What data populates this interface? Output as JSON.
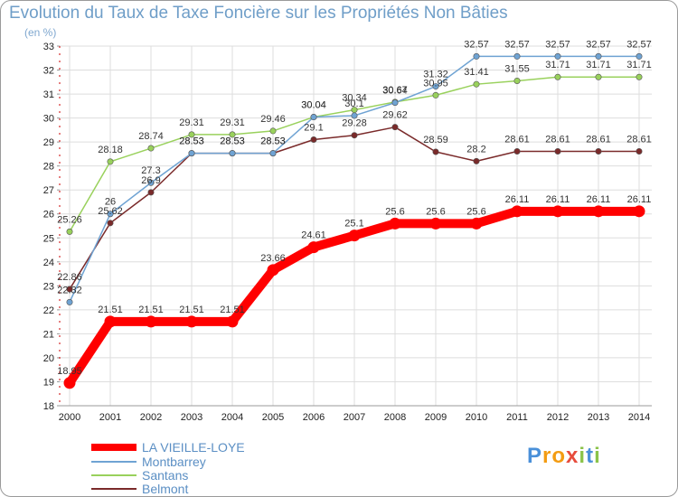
{
  "title": "Evolution du Taux de Taxe Foncière sur les Propriétés Non Bâties",
  "unit_label": "(en %)",
  "logo": {
    "letters": [
      "P",
      "r",
      "o",
      "x",
      "i",
      "t",
      "i"
    ],
    "colors": [
      "#4a90d9",
      "#f39c12",
      "#f39c12",
      "#e74c3c",
      "#8bc34a",
      "#4a90d9",
      "#8bc34a"
    ]
  },
  "chart_data": {
    "type": "line",
    "title": "Evolution du Taux de Taxe Foncière sur les Propriétés Non Bâties",
    "ylabel": "(en %)",
    "xlabel": "",
    "x": [
      "2000",
      "2001",
      "2002",
      "2003",
      "2004",
      "2005",
      "2006",
      "2007",
      "2008",
      "2009",
      "2010",
      "2011",
      "2012",
      "2013",
      "2014"
    ],
    "yticks": [
      18,
      19,
      20,
      21,
      22,
      23,
      24,
      25,
      26,
      27,
      28,
      29,
      30,
      31,
      32,
      33
    ],
    "ylim": [
      18,
      33
    ],
    "series": [
      {
        "name": "LA VIEILLE-LOYE",
        "color": "#ff0000",
        "values": [
          18.95,
          21.51,
          21.51,
          21.51,
          21.51,
          23.66,
          24.61,
          25.1,
          25.6,
          25.6,
          25.6,
          26.11,
          26.11,
          26.11,
          26.11
        ],
        "labels": [
          "18.95",
          "21.51",
          "21.51",
          "21.51",
          "21.51",
          "23.66",
          "24.61",
          "25.1",
          "25.6",
          "25.6",
          "25.6",
          "26.11",
          "26.11",
          "26.11",
          "26.11"
        ]
      },
      {
        "name": "Montbarrey",
        "color": "#6fa3d3",
        "values": [
          22.32,
          26.0,
          27.3,
          28.53,
          28.53,
          28.53,
          30.04,
          30.1,
          30.64,
          31.32,
          32.57,
          32.57,
          32.57,
          32.57,
          32.57
        ],
        "labels": [
          "22.32",
          "26",
          "27.3",
          "28.53",
          "28.53",
          "28.53",
          "30.04",
          "30.1",
          "30.64",
          "31.32",
          "32.57",
          "32.57",
          "32.57",
          "32.57",
          "32.57"
        ]
      },
      {
        "name": "Santans",
        "color": "#99d15c",
        "values": [
          25.26,
          28.18,
          28.74,
          29.31,
          29.31,
          29.46,
          30.04,
          30.34,
          30.67,
          30.95,
          31.41,
          31.55,
          31.71,
          31.71,
          31.71
        ],
        "labels": [
          "25.26",
          "28.18",
          "28.74",
          "29.31",
          "29.31",
          "29.46",
          "30.04",
          "30.34",
          "30.67",
          "30.95",
          "31.41",
          "31.55",
          "31.71",
          "31.71",
          "31.71"
        ]
      },
      {
        "name": "Belmont",
        "color": "#7a2a2a",
        "values": [
          22.86,
          25.62,
          26.9,
          28.53,
          28.53,
          28.53,
          29.1,
          29.28,
          29.62,
          28.59,
          28.2,
          28.61,
          28.61,
          28.61,
          28.61
        ],
        "labels": [
          "22.86",
          "25.62",
          "26.9",
          "28.53",
          "28.53",
          "28.53",
          "29.1",
          "29.28",
          "29.62",
          "28.59",
          "28.2",
          "28.61",
          "28.61",
          "28.61",
          "28.61"
        ]
      }
    ],
    "legend": "bottom-left"
  }
}
